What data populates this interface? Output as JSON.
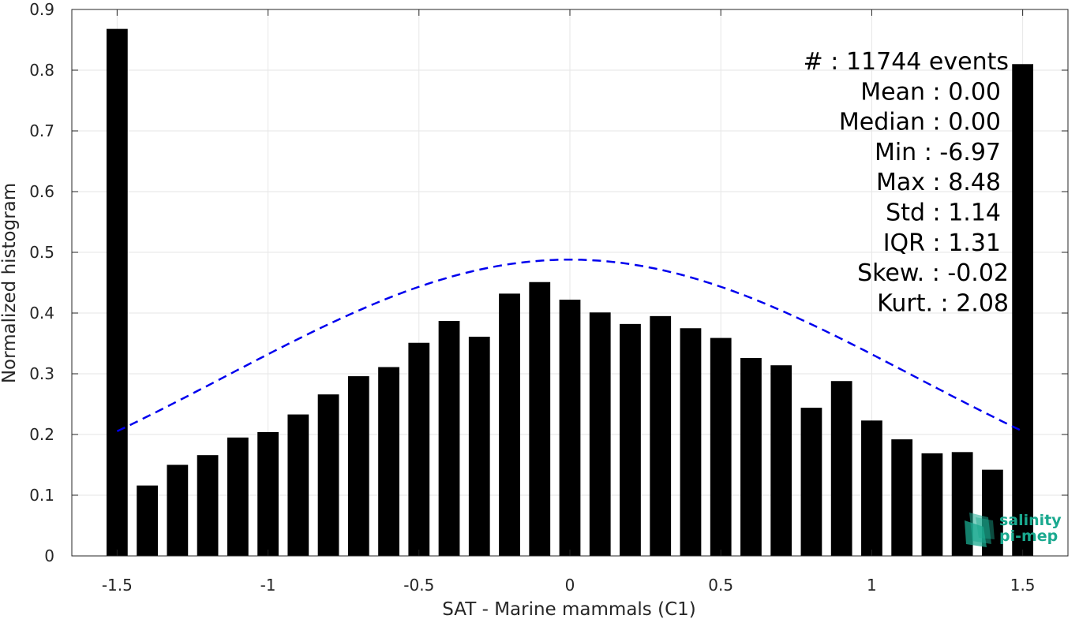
{
  "chart_data": {
    "type": "bar",
    "xlabel": "SAT - Marine mammals (C1)",
    "ylabel": "Normalized histogram",
    "xlim": [
      -1.65,
      1.65
    ],
    "ylim": [
      0,
      0.9
    ],
    "xticks": [
      -1.5,
      -1,
      -0.5,
      0,
      0.5,
      1,
      1.5
    ],
    "xtick_labels": [
      "-1.5",
      "-1",
      "-0.5",
      "0",
      "0.5",
      "1",
      "1.5"
    ],
    "yticks": [
      0,
      0.1,
      0.2,
      0.3,
      0.4,
      0.5,
      0.6,
      0.7,
      0.8,
      0.9
    ],
    "ytick_labels": [
      "0",
      "0.1",
      "0.2",
      "0.3",
      "0.4",
      "0.5",
      "0.6",
      "0.7",
      "0.8",
      "0.9"
    ],
    "grid": true,
    "bar_color": "#000000",
    "x": [
      -1.5,
      -1.4,
      -1.3,
      -1.2,
      -1.1,
      -1.0,
      -0.9,
      -0.8,
      -0.7,
      -0.6,
      -0.5,
      -0.4,
      -0.3,
      -0.2,
      -0.1,
      0.0,
      0.1,
      0.2,
      0.3,
      0.4,
      0.5,
      0.6,
      0.7,
      0.8,
      0.9,
      1.0,
      1.1,
      1.2,
      1.3,
      1.4,
      1.5
    ],
    "values": [
      0.868,
      0.116,
      0.15,
      0.166,
      0.195,
      0.204,
      0.233,
      0.266,
      0.296,
      0.311,
      0.351,
      0.387,
      0.361,
      0.432,
      0.451,
      0.422,
      0.401,
      0.382,
      0.395,
      0.375,
      0.359,
      0.326,
      0.314,
      0.244,
      0.288,
      0.223,
      0.192,
      0.169,
      0.171,
      0.142,
      0.81
    ],
    "fit_curve": {
      "type": "gaussian",
      "mean": 0.0,
      "std": 1.14,
      "peak": 0.488,
      "x_range": [
        -1.5,
        1.5
      ],
      "color": "#0000ee",
      "style": "dashed"
    },
    "stats": [
      {
        "label": "#",
        "value": ": 11744 events"
      },
      {
        "label": "Mean",
        "value": ": 0.00"
      },
      {
        "label": "Median",
        "value": ": 0.00"
      },
      {
        "label": "Min",
        "value": ": -6.97"
      },
      {
        "label": "Max",
        "value": ": 8.48"
      },
      {
        "label": "Std",
        "value": ": 1.14"
      },
      {
        "label": "IQR",
        "value": ": 1.31"
      },
      {
        "label": "Skew.",
        "value": ": -0.02"
      },
      {
        "label": "Kurt.",
        "value": ": 2.08"
      }
    ]
  },
  "logo": {
    "line1": "salinity",
    "line2": "pi-mep",
    "color": "#1aa98f"
  }
}
